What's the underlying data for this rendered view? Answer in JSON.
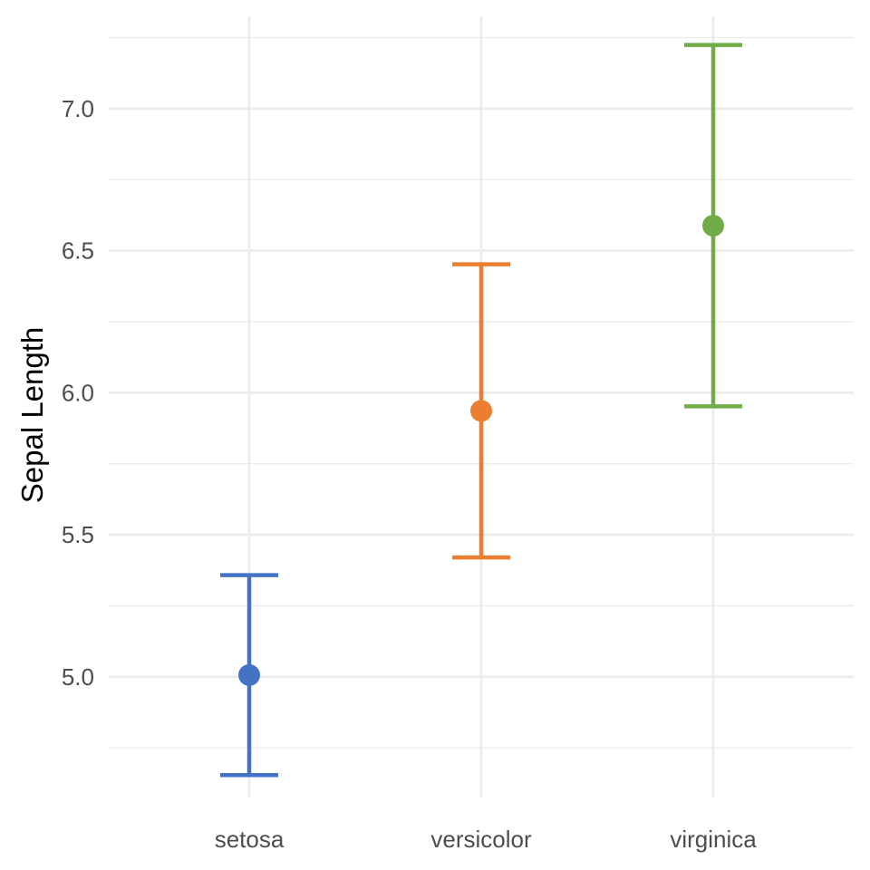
{
  "chart_data": {
    "type": "errorbar",
    "title": "",
    "xlabel": "",
    "ylabel": "Sepal Length",
    "categories": [
      "setosa",
      "versicolor",
      "virginica"
    ],
    "means": [
      5.006,
      5.936,
      6.588
    ],
    "lower": [
      4.654,
      5.42,
      5.952
    ],
    "upper": [
      5.358,
      6.452,
      7.224
    ],
    "colors": [
      "#4472C4",
      "#ED7D31",
      "#70AD47"
    ],
    "ylim": [
      4.575,
      7.325
    ],
    "yticks": [
      5.0,
      5.5,
      6.0,
      6.5,
      7.0
    ],
    "ytick_labels": [
      "5.0",
      "5.5",
      "6.0",
      "6.5",
      "7.0"
    ],
    "y_minor_ticks": [
      4.75,
      5.25,
      5.75,
      6.25,
      6.75,
      7.25
    ],
    "grid": true,
    "legend": "none"
  }
}
